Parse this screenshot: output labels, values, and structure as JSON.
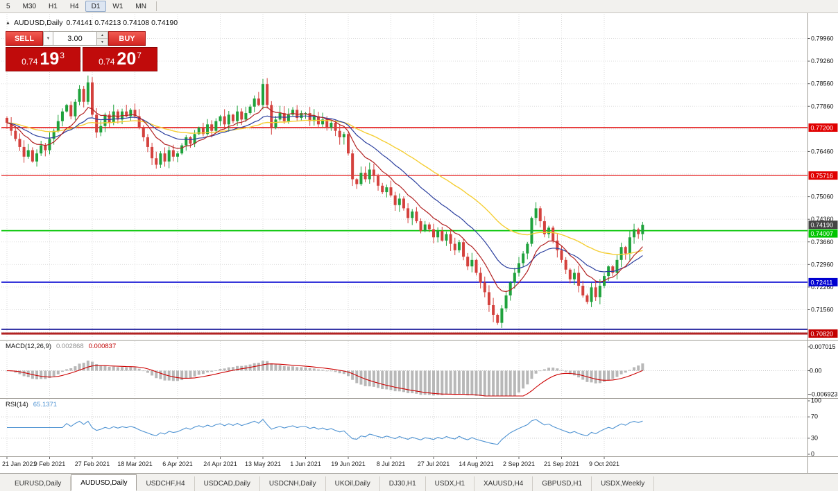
{
  "colors": {
    "up": "#1FA23C",
    "down": "#D4413D",
    "ma_fast": "#B22222",
    "ma_mid": "#2B3F9E",
    "ma_slow": "#F5CE33",
    "macd_hist": "#B8B8B8",
    "macd_signal": "#CC0000",
    "rsi_line": "#4F93D2",
    "grid": "#DEDEDE",
    "separator": "#9E9B95"
  },
  "toolbar": {
    "timeframes": [
      "5",
      "M30",
      "H1",
      "H4",
      "D1",
      "W1",
      "MN"
    ],
    "active": "D1"
  },
  "chart": {
    "title": "AUDUSD,Daily",
    "ohlc": "0.74141 0.74213 0.74108 0.74190"
  },
  "trade_panel": {
    "sell_label": "SELL",
    "buy_label": "BUY",
    "volume": "3.00",
    "sell_price": {
      "small": "0.74",
      "big": "19",
      "sup": "3"
    },
    "buy_price": {
      "small": "0.74",
      "big": "20",
      "sup": "7"
    }
  },
  "price_axis": {
    "labels": [
      "0.79960",
      "0.79260",
      "0.78560",
      "0.77860",
      "0.76460",
      "0.75060",
      "0.74360",
      "0.73660",
      "0.72960",
      "0.72260",
      "0.71560"
    ],
    "badges": [
      {
        "label": "0.77200",
        "price": 0.772,
        "color": "#E00000"
      },
      {
        "label": "0.75716",
        "price": 0.75716,
        "color": "#E00000"
      },
      {
        "label": "0.74190",
        "price": 0.7419,
        "color": "#444444"
      },
      {
        "label": "0.74007",
        "price": 0.74007,
        "color": "#00C400"
      },
      {
        "label": "0.72411",
        "price": 0.72411,
        "color": "#0000D0"
      },
      {
        "label": "0.70820",
        "price": 0.7082,
        "color": "#C40000"
      }
    ]
  },
  "hlines": [
    {
      "price": 0.772,
      "color": "#E00000",
      "width": 1.6
    },
    {
      "price": 0.75716,
      "color": "#E00000",
      "width": 1.2
    },
    {
      "price": 0.74007,
      "color": "#00C400",
      "width": 1.8
    },
    {
      "price": 0.72411,
      "color": "#0000D0",
      "width": 1.8
    },
    {
      "price": 0.7095,
      "color": "#2626A0",
      "width": 2
    },
    {
      "price": 0.7082,
      "color": "#B22222",
      "width": 3
    }
  ],
  "macd": {
    "name": "MACD(12,26,9)",
    "main_value": "0.002868",
    "signal_value": "0.000837",
    "axis_labels": [
      "0.007015",
      "0.00",
      "-0.006923"
    ],
    "axis_values": [
      0.007015,
      0,
      -0.006923
    ]
  },
  "rsi": {
    "name": "RSI(14)",
    "value": "65.1371",
    "axis_labels": [
      "100",
      "70",
      "30",
      "0"
    ],
    "levels": [
      70,
      30
    ]
  },
  "date_axis": [
    "21 Jan 2021",
    "9 Feb 2021",
    "27 Feb 2021",
    "18 Mar 2021",
    "6 Apr 2021",
    "24 Apr 2021",
    "13 May 2021",
    "1 Jun 2021",
    "19 Jun 2021",
    "8 Jul 2021",
    "27 Jul 2021",
    "14 Aug 2021",
    "2 Sep 2021",
    "21 Sep 2021",
    "9 Oct 2021"
  ],
  "tabs": {
    "items": [
      "EURUSD,Daily",
      "AUDUSD,Daily",
      "USDCHF,H4",
      "USDCAD,Daily",
      "USDCNH,Daily",
      "UKOil,Daily",
      "DJ30,H1",
      "USDX,H1",
      "XAUUSD,H4",
      "GBPUSD,H1",
      "USDX,Weekly"
    ],
    "active": "AUDUSD,Daily"
  },
  "chart_data": {
    "type": "candlestick",
    "symbol": "AUDUSD",
    "timeframe": "Daily",
    "ohlc_current": {
      "open": 0.74141,
      "high": 0.74213,
      "low": 0.74108,
      "close": 0.7419
    },
    "price_range": [
      0.7069,
      0.80616
    ],
    "y_grid_top": 0.7996,
    "y_grid_step": 0.007,
    "y_grid_count": 14,
    "label_every": 10,
    "closes": [
      0.7735,
      0.771,
      0.7685,
      0.766,
      0.763,
      0.765,
      0.7615,
      0.764,
      0.7665,
      0.765,
      0.7685,
      0.771,
      0.774,
      0.777,
      0.779,
      0.7755,
      0.78,
      0.784,
      0.78,
      0.786,
      0.776,
      0.7705,
      0.7725,
      0.776,
      0.7735,
      0.777,
      0.7745,
      0.777,
      0.7755,
      0.7775,
      0.7755,
      0.772,
      0.769,
      0.766,
      0.7625,
      0.7605,
      0.764,
      0.7615,
      0.765,
      0.763,
      0.764,
      0.7665,
      0.769,
      0.767,
      0.77,
      0.772,
      0.77,
      0.773,
      0.771,
      0.774,
      0.7755,
      0.773,
      0.776,
      0.774,
      0.777,
      0.7745,
      0.7765,
      0.7785,
      0.781,
      0.779,
      0.7855,
      0.779,
      0.772,
      0.7745,
      0.7765,
      0.774,
      0.776,
      0.7775,
      0.775,
      0.7765,
      0.7765,
      0.774,
      0.7755,
      0.773,
      0.7745,
      0.772,
      0.7735,
      0.771,
      0.769,
      0.77,
      0.764,
      0.756,
      0.7545,
      0.758,
      0.756,
      0.759,
      0.757,
      0.754,
      0.752,
      0.7535,
      0.751,
      0.748,
      0.75,
      0.747,
      0.744,
      0.746,
      0.743,
      0.74,
      0.742,
      0.7405,
      0.738,
      0.74,
      0.737,
      0.739,
      0.736,
      0.734,
      0.7365,
      0.732,
      0.729,
      0.731,
      0.727,
      0.724,
      0.721,
      0.717,
      0.714,
      0.7115,
      0.716,
      0.72,
      0.724,
      0.727,
      0.73,
      0.733,
      0.736,
      0.744,
      0.747,
      0.743,
      0.739,
      0.741,
      0.737,
      0.734,
      0.731,
      0.728,
      0.725,
      0.727,
      0.723,
      0.72,
      0.718,
      0.7225,
      0.7195,
      0.723,
      0.726,
      0.729,
      0.727,
      0.731,
      0.735,
      0.733,
      0.738,
      0.7405,
      0.739,
      0.7419
    ],
    "indicators": {
      "ma_periods": [
        10,
        21,
        45
      ],
      "macd_params": [
        12,
        26,
        9
      ],
      "rsi_period": 14
    }
  }
}
